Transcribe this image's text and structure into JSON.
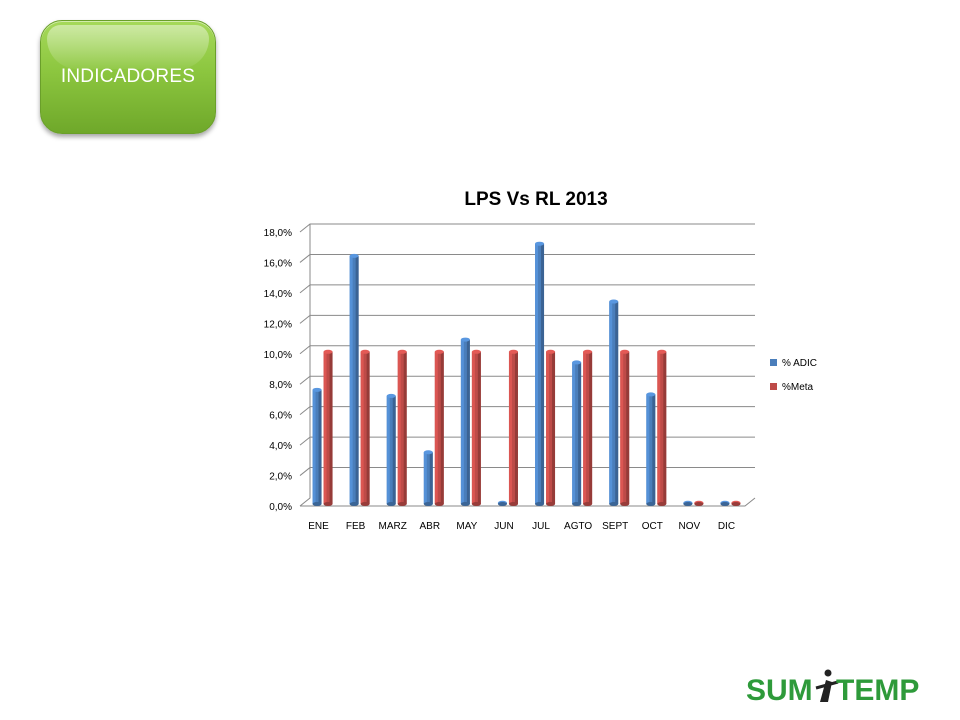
{
  "header": {
    "button_label": "INDICADORES"
  },
  "logo": {
    "text_left": "SUM",
    "text_right": "TEMP",
    "color": "#2e9a3a"
  },
  "colors": {
    "series_blue": "#4a7ebb",
    "series_red": "#be4b48",
    "button_green": "#8cc63f"
  },
  "chart_data": {
    "type": "bar",
    "title": "LPS Vs RL 2013",
    "categories": [
      "ENE",
      "FEB",
      "MARZ",
      "ABR",
      "MAY",
      "JUN",
      "JUL",
      "AGTO",
      "SEPT",
      "OCT",
      "NOV",
      "DIC"
    ],
    "series": [
      {
        "name": "% ADIC",
        "color": "#4a7ebb",
        "values": [
          7.5,
          16.3,
          7.1,
          3.4,
          10.8,
          0.0,
          17.1,
          9.3,
          13.3,
          7.2,
          0.0,
          0.0
        ]
      },
      {
        "name": "%Meta",
        "color": "#be4b48",
        "values": [
          10.0,
          10.0,
          10.0,
          10.0,
          10.0,
          10.0,
          10.0,
          10.0,
          10.0,
          10.0,
          0.0,
          0.0
        ]
      }
    ],
    "ylim": [
      0,
      18
    ],
    "yticks": [
      "0,0%",
      "2,0%",
      "4,0%",
      "6,0%",
      "8,0%",
      "10,0%",
      "12,0%",
      "14,0%",
      "16,0%",
      "18,0%"
    ],
    "grid": true,
    "legend": "right"
  }
}
